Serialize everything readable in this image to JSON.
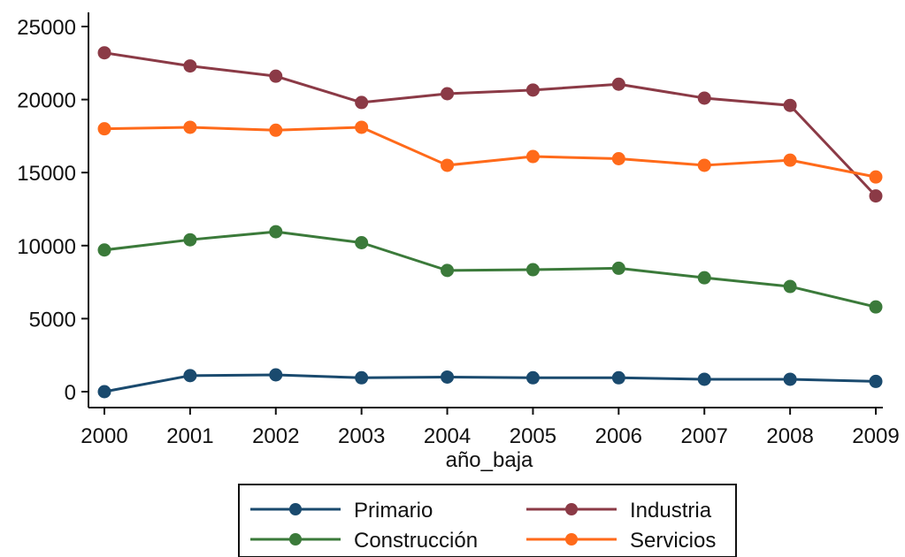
{
  "chart_data": {
    "type": "line",
    "title": "",
    "xlabel": "año_baja",
    "ylabel": "",
    "x": [
      2000,
      2001,
      2002,
      2003,
      2004,
      2005,
      2006,
      2007,
      2008,
      2009
    ],
    "xlim": [
      2000,
      2009
    ],
    "ylim": [
      0,
      25000
    ],
    "yticks": [
      0,
      5000,
      10000,
      15000,
      20000,
      25000
    ],
    "grid": false,
    "legend_position": "bottom",
    "series": [
      {
        "name": "Primario",
        "color": "#1a4a6e",
        "values": [
          0,
          1100,
          1150,
          950,
          1000,
          950,
          950,
          850,
          850,
          700
        ]
      },
      {
        "name": "Industria",
        "color": "#8b3a46",
        "values": [
          23200,
          22300,
          21600,
          19800,
          20400,
          20650,
          21050,
          20100,
          19600,
          13400
        ]
      },
      {
        "name": "Construcción",
        "color": "#3b7a3a",
        "values": [
          9700,
          10400,
          10950,
          10200,
          8300,
          8350,
          8450,
          7800,
          7200,
          5800
        ]
      },
      {
        "name": "Servicios",
        "color": "#ff6a1a",
        "values": [
          18000,
          18100,
          17900,
          18100,
          15500,
          16100,
          15950,
          15500,
          15850,
          14700
        ]
      }
    ]
  }
}
